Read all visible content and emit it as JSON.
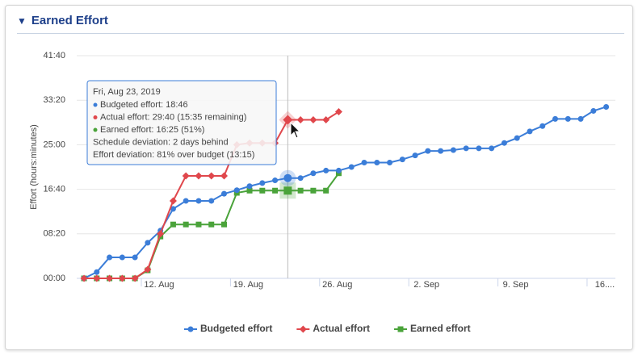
{
  "header": {
    "title": "Earned Effort"
  },
  "chart_data": {
    "type": "line",
    "y_label": "Effort (hours:minutes)",
    "x": [
      "2019-08-07",
      "2019-08-08",
      "2019-08-09",
      "2019-08-10",
      "2019-08-11",
      "2019-08-12",
      "2019-08-13",
      "2019-08-14",
      "2019-08-15",
      "2019-08-16",
      "2019-08-17",
      "2019-08-18",
      "2019-08-19",
      "2019-08-20",
      "2019-08-21",
      "2019-08-22",
      "2019-08-23",
      "2019-08-24",
      "2019-08-25",
      "2019-08-26",
      "2019-08-27",
      "2019-08-28",
      "2019-08-29",
      "2019-08-30",
      "2019-08-31",
      "2019-09-01",
      "2019-09-02",
      "2019-09-03",
      "2019-09-04",
      "2019-09-05",
      "2019-09-06",
      "2019-09-07",
      "2019-09-08",
      "2019-09-09",
      "2019-09-10",
      "2019-09-11",
      "2019-09-12",
      "2019-09-13",
      "2019-09-14",
      "2019-09-15",
      "2019-09-16",
      "2019-09-17"
    ],
    "xticks": [
      {
        "value": "2019-08-12",
        "label": "12. Aug"
      },
      {
        "value": "2019-08-19",
        "label": "19. Aug"
      },
      {
        "value": "2019-08-26",
        "label": "26. Aug"
      },
      {
        "value": "2019-09-02",
        "label": "2. Sep"
      },
      {
        "value": "2019-09-09",
        "label": "9. Sep"
      },
      {
        "value": "2019-09-16",
        "label": "16...."
      }
    ],
    "ylim": [
      0,
      2500
    ],
    "yticks": [
      {
        "value": 0,
        "label": "00:00"
      },
      {
        "value": 500,
        "label": "08:20"
      },
      {
        "value": 1000,
        "label": "16:40"
      },
      {
        "value": 1500,
        "label": "25:00"
      },
      {
        "value": 2000,
        "label": "33:20"
      },
      {
        "value": 2500,
        "label": "41:40"
      }
    ],
    "grid": true,
    "legend": "bottom",
    "series": [
      {
        "name": "Budgeted effort",
        "color": "#3b7dd8",
        "marker": "circle",
        "values": [
          0,
          70,
          235,
          235,
          235,
          400,
          535,
          780,
          870,
          870,
          870,
          950,
          990,
          1035,
          1070,
          1100,
          1126,
          1126,
          1180,
          1210,
          1210,
          1250,
          1300,
          1300,
          1300,
          1335,
          1380,
          1430,
          1430,
          1440,
          1460,
          1460,
          1460,
          1520,
          1575,
          1650,
          1710,
          1790,
          1790,
          1790,
          1880,
          1925
        ]
      },
      {
        "name": "Actual effort",
        "color": "#e0474c",
        "marker": "diamond",
        "values": [
          0,
          0,
          0,
          0,
          0,
          100,
          500,
          870,
          1150,
          1150,
          1150,
          1150,
          1500,
          1520,
          1520,
          1520,
          1780,
          1780,
          1780,
          1780,
          1870,
          null,
          null,
          null,
          null,
          null,
          null,
          null,
          null,
          null,
          null,
          null,
          null,
          null,
          null,
          null,
          null,
          null,
          null,
          null,
          null,
          null
        ]
      },
      {
        "name": "Earned effort",
        "color": "#4aa33a",
        "marker": "square",
        "values": [
          0,
          0,
          0,
          0,
          0,
          90,
          470,
          605,
          605,
          605,
          605,
          605,
          960,
          985,
          985,
          985,
          985,
          985,
          985,
          985,
          1180,
          null,
          null,
          null,
          null,
          null,
          null,
          null,
          null,
          null,
          null,
          null,
          null,
          null,
          null,
          null,
          null,
          null,
          null,
          null,
          null,
          null
        ]
      }
    ],
    "tooltip": {
      "title": "Fri, Aug 23, 2019",
      "lines": [
        "Budgeted effort: 18:46",
        "Actual effort: 29:40 (15:35 remaining)",
        "Earned effort: 16:25 (51%)",
        "Schedule deviation: 2 days behind",
        "Effort deviation: 81% over budget (13:15)"
      ]
    }
  }
}
